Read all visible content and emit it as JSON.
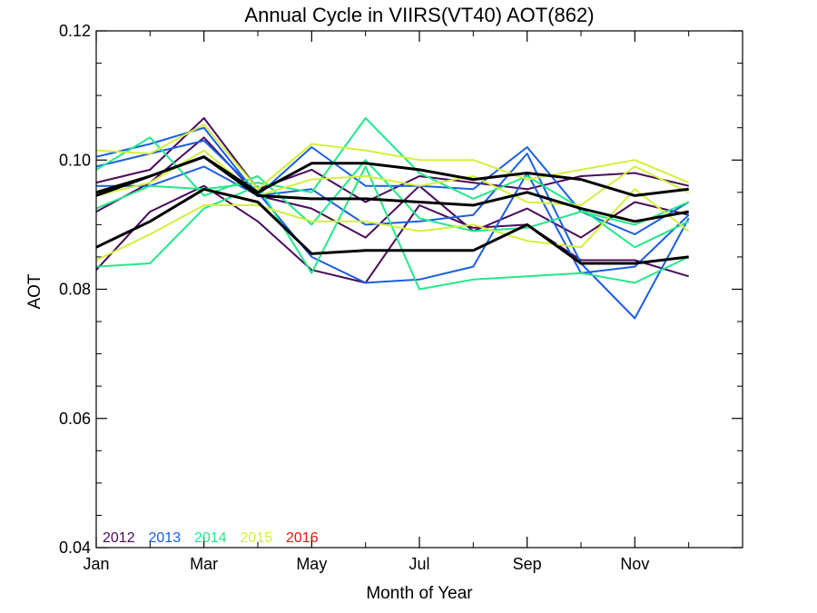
{
  "chart_data": {
    "type": "line",
    "title": "Annual Cycle in VIIRS(VT40) AOT(862)",
    "xlabel": "Month of Year",
    "ylabel": "AOT",
    "xlim": [
      1,
      13
    ],
    "ylim": [
      0.04,
      0.12
    ],
    "x_ticks": [
      {
        "label": "Jan",
        "value": 1
      },
      {
        "label": "Mar",
        "value": 3
      },
      {
        "label": "May",
        "value": 5
      },
      {
        "label": "Jul",
        "value": 7
      },
      {
        "label": "Sep",
        "value": 9
      },
      {
        "label": "Nov",
        "value": 11
      }
    ],
    "y_ticks": [
      {
        "label": "0.04",
        "value": 0.04
      },
      {
        "label": "0.06",
        "value": 0.06
      },
      {
        "label": "0.08",
        "value": 0.08
      },
      {
        "label": "0.10",
        "value": 0.1
      },
      {
        "label": "0.12",
        "value": 0.12
      }
    ],
    "y_minor_ticks": [
      0.045,
      0.05,
      0.055,
      0.065,
      0.07,
      0.075,
      0.085,
      0.09,
      0.095,
      0.105,
      0.11,
      0.115
    ],
    "grid": false,
    "legend_position": "bottom-left",
    "x": [
      1,
      2,
      3,
      4,
      5,
      6,
      7,
      8,
      9,
      10,
      11,
      12
    ],
    "legend": [
      {
        "name": "2012",
        "color": "#4a0a5c"
      },
      {
        "name": "2013",
        "color": "#1a5fe0"
      },
      {
        "name": "2014",
        "color": "#22e88a"
      },
      {
        "name": "2015",
        "color": "#d2f03a"
      },
      {
        "name": "2016",
        "color": "#ee1111"
      }
    ],
    "series": [
      {
        "color": "#4a0a5c",
        "values": [
          0.0965,
          0.0985,
          0.1065,
          0.0955,
          0.0985,
          0.0935,
          0.0975,
          0.0965,
          0.0955,
          0.0975,
          0.098,
          0.096
        ]
      },
      {
        "color": "#4a0a5c",
        "values": [
          0.092,
          0.0965,
          0.1035,
          0.0945,
          0.0925,
          0.088,
          0.096,
          0.089,
          0.0925,
          0.088,
          0.0935,
          0.0915
        ]
      },
      {
        "color": "#4a0a5c",
        "values": [
          0.083,
          0.092,
          0.096,
          0.0905,
          0.083,
          0.081,
          0.093,
          0.0895,
          0.09,
          0.0845,
          0.0845,
          0.082
        ]
      },
      {
        "color": "#1a5fe0",
        "values": [
          0.1005,
          0.1025,
          0.105,
          0.0945,
          0.102,
          0.096,
          0.096,
          0.0955,
          0.102,
          0.092,
          0.0885,
          0.0935
        ]
      },
      {
        "color": "#1a5fe0",
        "values": [
          0.096,
          0.096,
          0.099,
          0.0945,
          0.0955,
          0.09,
          0.0905,
          0.0915,
          0.101,
          0.084,
          0.0755,
          0.091
        ]
      },
      {
        "color": "#1a5fe0",
        "values": [
          0.099,
          0.101,
          0.103,
          0.095,
          0.085,
          0.081,
          0.0815,
          0.0835,
          0.098,
          0.0825,
          0.0835,
          0.0915
        ]
      },
      {
        "color": "#22e88a",
        "values": [
          0.0985,
          0.1035,
          0.0945,
          0.0975,
          0.09,
          0.1,
          0.091,
          0.089,
          0.0895,
          0.092,
          0.09,
          0.0935
        ]
      },
      {
        "color": "#22e88a",
        "values": [
          0.0925,
          0.096,
          0.0955,
          0.0965,
          0.095,
          0.1065,
          0.098,
          0.094,
          0.0975,
          0.0925,
          0.0865,
          0.0905
        ]
      },
      {
        "color": "#22e88a",
        "values": [
          0.0835,
          0.084,
          0.0925,
          0.096,
          0.0825,
          0.099,
          0.08,
          0.0815,
          0.082,
          0.0825,
          0.081,
          0.085
        ]
      },
      {
        "color": "#d2f03a",
        "values": [
          0.1015,
          0.101,
          0.1055,
          0.0955,
          0.1025,
          0.1015,
          0.1,
          0.1,
          0.097,
          0.0985,
          0.1,
          0.0965
        ]
      },
      {
        "color": "#d2f03a",
        "values": [
          0.0945,
          0.0965,
          0.1015,
          0.0945,
          0.097,
          0.0975,
          0.096,
          0.0975,
          0.0935,
          0.093,
          0.099,
          0.095
        ]
      },
      {
        "color": "#d2f03a",
        "values": [
          0.0845,
          0.0885,
          0.093,
          0.093,
          0.0905,
          0.0905,
          0.089,
          0.09,
          0.0875,
          0.0865,
          0.0955,
          0.089
        ]
      },
      {
        "color": "#000000",
        "values": [
          0.095,
          0.0975,
          0.1005,
          0.095,
          0.0995,
          0.0995,
          0.0985,
          0.097,
          0.098,
          0.097,
          0.0945,
          0.0955
        ]
      },
      {
        "color": "#000000",
        "values": [
          0.0945,
          0.0975,
          0.1005,
          0.0945,
          0.094,
          0.094,
          0.0935,
          0.093,
          0.095,
          0.0925,
          0.0905,
          0.092
        ]
      },
      {
        "color": "#000000",
        "values": [
          0.0865,
          0.0905,
          0.0955,
          0.0935,
          0.0855,
          0.086,
          0.086,
          0.086,
          0.09,
          0.084,
          0.084,
          0.085
        ]
      }
    ]
  }
}
